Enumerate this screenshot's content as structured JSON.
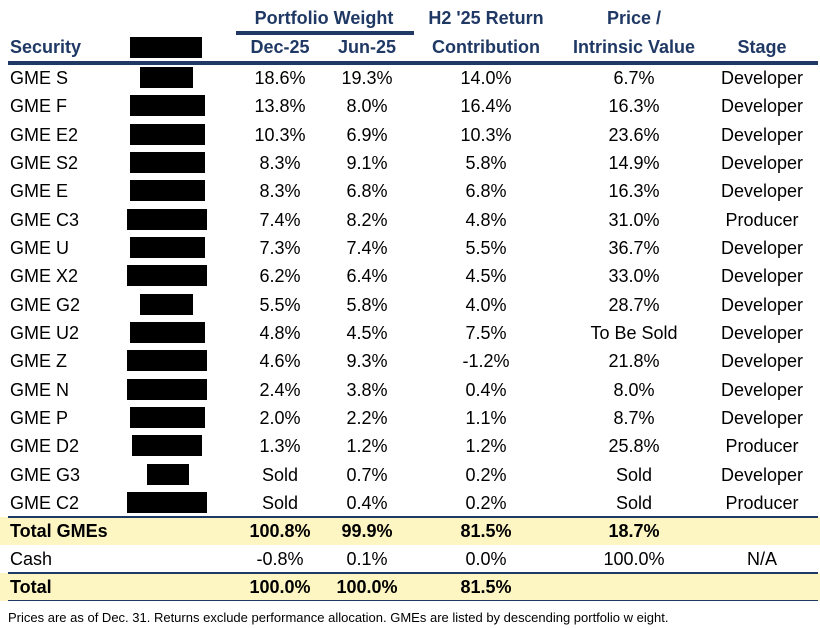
{
  "header": {
    "portfolio_weight": "Portfolio Weight",
    "security": "Security",
    "dec": "Dec-25",
    "jun": "Jun-25",
    "return_top": "H2 '25 Return",
    "return_bottom": "Contribution",
    "price_top": "Price /",
    "price_bottom": "Intrinsic Value",
    "stage": "Stage"
  },
  "rows": [
    {
      "security": "GME S",
      "dec": "18.6%",
      "jun": "19.3%",
      "contrib": "14.0%",
      "piv": "6.7%",
      "stage": "Developer"
    },
    {
      "security": "GME F",
      "dec": "13.8%",
      "jun": "8.0%",
      "contrib": "16.4%",
      "piv": "16.3%",
      "stage": "Developer"
    },
    {
      "security": "GME E2",
      "dec": "10.3%",
      "jun": "6.9%",
      "contrib": "10.3%",
      "piv": "23.6%",
      "stage": "Developer"
    },
    {
      "security": "GME S2",
      "dec": "8.3%",
      "jun": "9.1%",
      "contrib": "5.8%",
      "piv": "14.9%",
      "stage": "Developer"
    },
    {
      "security": "GME E",
      "dec": "8.3%",
      "jun": "6.8%",
      "contrib": "6.8%",
      "piv": "16.3%",
      "stage": "Developer"
    },
    {
      "security": "GME C3",
      "dec": "7.4%",
      "jun": "8.2%",
      "contrib": "4.8%",
      "piv": "31.0%",
      "stage": "Producer"
    },
    {
      "security": "GME U",
      "dec": "7.3%",
      "jun": "7.4%",
      "contrib": "5.5%",
      "piv": "36.7%",
      "stage": "Developer"
    },
    {
      "security": "GME X2",
      "dec": "6.2%",
      "jun": "6.4%",
      "contrib": "4.5%",
      "piv": "33.0%",
      "stage": "Developer"
    },
    {
      "security": "GME G2",
      "dec": "5.5%",
      "jun": "5.8%",
      "contrib": "4.0%",
      "piv": "28.7%",
      "stage": "Developer"
    },
    {
      "security": "GME U2",
      "dec": "4.8%",
      "jun": "4.5%",
      "contrib": "7.5%",
      "piv": "To Be Sold",
      "stage": "Developer"
    },
    {
      "security": "GME Z",
      "dec": "4.6%",
      "jun": "9.3%",
      "contrib": "-1.2%",
      "piv": "21.8%",
      "stage": "Developer"
    },
    {
      "security": "GME N",
      "dec": "2.4%",
      "jun": "3.8%",
      "contrib": "0.4%",
      "piv": "8.0%",
      "stage": "Developer"
    },
    {
      "security": "GME P",
      "dec": "2.0%",
      "jun": "2.2%",
      "contrib": "1.1%",
      "piv": "8.7%",
      "stage": "Developer"
    },
    {
      "security": "GME D2",
      "dec": "1.3%",
      "jun": "1.2%",
      "contrib": "1.2%",
      "piv": "25.8%",
      "stage": "Producer"
    },
    {
      "security": "GME G3",
      "dec": "Sold",
      "jun": "0.7%",
      "contrib": "0.2%",
      "piv": "Sold",
      "stage": "Developer"
    },
    {
      "security": "GME C2",
      "dec": "Sold",
      "jun": "0.4%",
      "contrib": "0.2%",
      "piv": "Sold",
      "stage": "Producer"
    }
  ],
  "total_gmes": {
    "security": "Total GMEs",
    "dec": "100.8%",
    "jun": "99.9%",
    "contrib": "81.5%",
    "piv": "18.7%",
    "stage": ""
  },
  "cash": {
    "security": "Cash",
    "dec": "-0.8%",
    "jun": "0.1%",
    "contrib": "0.0%",
    "piv": "100.0%",
    "stage": "N/A"
  },
  "total": {
    "security": "Total",
    "dec": "100.0%",
    "jun": "100.0%",
    "contrib": "81.5%",
    "piv": "",
    "stage": ""
  },
  "footnote": "Prices are as of Dec. 31. Returns exclude performance allocation. GMEs are listed by descending portfolio w eight.",
  "colors": {
    "header": "#1f3864",
    "highlight": "#fdf6c3",
    "redaction": "#000000"
  }
}
